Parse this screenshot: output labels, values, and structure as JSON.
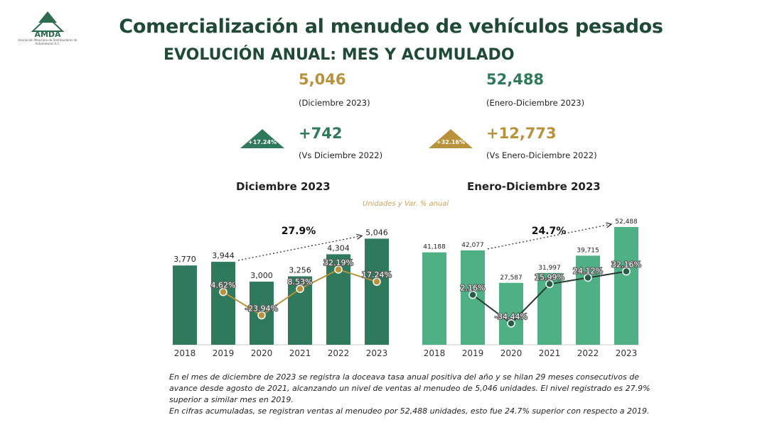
{
  "logo": {
    "text": "AMDA",
    "org": "Asociación Mexicana de Distribuidores de Automotores A.C."
  },
  "title": "Comercialización al menudeo de vehículos pesados",
  "subtitle": "EVOLUCIÓN ANUAL: MES Y ACUMULADO",
  "kpis": {
    "month_value": "5,046",
    "month_label": "(Diciembre 2023)",
    "ytd_value": "52,488",
    "ytd_label": "(Enero-Diciembre 2023)",
    "month_diff": "+742",
    "month_diff_label": "(Vs Diciembre 2022)",
    "month_badge": "+17.24%",
    "ytd_diff": "+12,773",
    "ytd_diff_label": "(Vs Enero-Diciembre 2022)",
    "ytd_badge": "+32.16%"
  },
  "units_label": "Unidades y Var. % anual",
  "colors": {
    "dark_green": "#2f7a5c",
    "light_green": "#4faf85",
    "gold": "#b8923a",
    "title_green": "#1f4a36"
  },
  "chart_data": [
    {
      "type": "bar",
      "title": "Diciembre 2023",
      "categories": [
        "2018",
        "2019",
        "2020",
        "2021",
        "2022",
        "2023"
      ],
      "values": [
        3770,
        3944,
        3000,
        3256,
        4304,
        5046
      ],
      "value_labels": [
        "3,770",
        "3,944",
        "3,000",
        "3,256",
        "4,304",
        "5,046"
      ],
      "line_series": {
        "name": "Var. % anual",
        "values": [
          null,
          4.62,
          -23.94,
          8.53,
          32.19,
          17.24
        ],
        "labels": [
          "",
          "4.62%",
          "-23.94%",
          "8.53%",
          "32.19%",
          "17.24%"
        ]
      },
      "annotation": "27.9%",
      "ylim": [
        0,
        5600
      ]
    },
    {
      "type": "bar",
      "title": "Enero-Diciembre 2023",
      "categories": [
        "2018",
        "2019",
        "2020",
        "2021",
        "2022",
        "2023"
      ],
      "values": [
        41188,
        42077,
        27587,
        31997,
        39715,
        52488
      ],
      "value_labels": [
        "41,188",
        "42,077",
        "27,587",
        "31,997",
        "39,715",
        "52,488"
      ],
      "line_series": {
        "name": "Var. % anual",
        "values": [
          null,
          2.16,
          -34.44,
          15.99,
          24.12,
          32.16
        ],
        "labels": [
          "",
          "2.16%",
          "-34.44%",
          "15.99%",
          "24.12%",
          "32.16%"
        ]
      },
      "annotation": "24.7%",
      "ylim": [
        0,
        52488
      ]
    }
  ],
  "notes": [
    "En el mes de diciembre de 2023 se registra la doceava tasa anual positiva del año y se hilan 29 meses consecutivos de avance desde agosto de 2021, alcanzando un nivel de ventas al menudeo de 5,046 unidades. El nivel registrado es 27.9% superior a similar mes en 2019.",
    "En cifras acumuladas, se registran ventas al menudeo por 52,488 unidades, esto fue 24.7% superior con respecto a 2019."
  ]
}
